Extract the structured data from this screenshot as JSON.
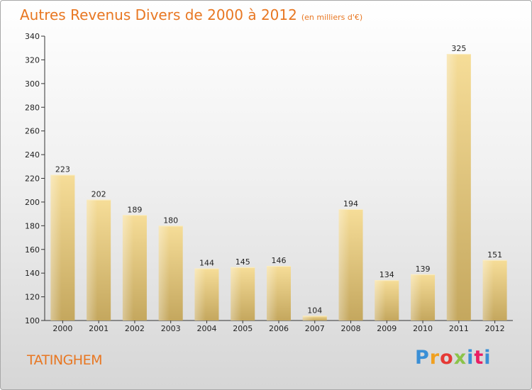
{
  "title": "Autres Revenus Divers de 2000 à 2012",
  "unit_note": "(en milliers d'€)",
  "commune": "TATINGHEM",
  "brand": "Proxiti",
  "colors": {
    "accent": "#e87722",
    "bar_light": "#f6dd98",
    "bar_dark": "#c4a75e"
  },
  "chart_data": {
    "type": "bar",
    "title": "Autres Revenus Divers de 2000 à 2012",
    "xlabel": "",
    "ylabel": "",
    "categories": [
      "2000",
      "2001",
      "2002",
      "2003",
      "2004",
      "2005",
      "2006",
      "2007",
      "2008",
      "2009",
      "2010",
      "2011",
      "2012"
    ],
    "values": [
      223,
      202,
      189,
      180,
      144,
      145,
      146,
      104,
      194,
      134,
      139,
      325,
      151
    ],
    "ylim": [
      100,
      340
    ],
    "yticks": [
      100,
      120,
      140,
      160,
      180,
      200,
      220,
      240,
      260,
      280,
      300,
      320,
      340
    ],
    "grid": false,
    "legend": "none"
  }
}
